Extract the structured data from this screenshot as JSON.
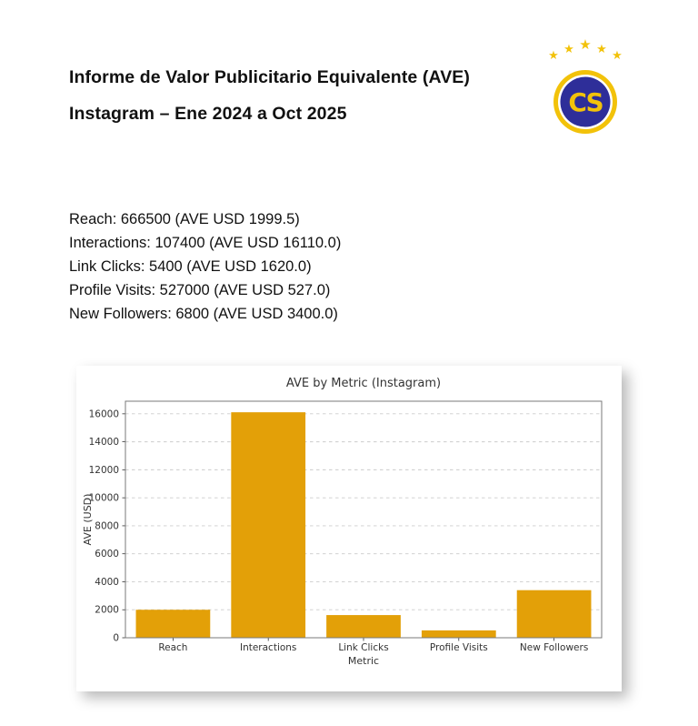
{
  "page": {
    "title_line1": "Informe de Valor Publicitario Equivalente (AVE)",
    "title_line2": "Instagram – Ene 2024 a Oct 2025"
  },
  "logo": {
    "letters": "CS",
    "star": "★",
    "colors": {
      "gold": "#F2C20A",
      "blue": "#2E2E99",
      "white": "#ffffff"
    }
  },
  "metrics": {
    "lines": [
      "Reach: 666500 (AVE USD 1999.5)",
      "Interactions: 107400 (AVE USD 16110.0)",
      "Link Clicks: 5400 (AVE USD 1620.0)",
      "Profile Visits: 527000 (AVE USD 527.0)",
      "New Followers: 6800 (AVE USD 3400.0)"
    ]
  },
  "chart_data": {
    "type": "bar",
    "title": "AVE by Metric (Instagram)",
    "categories": [
      "Reach",
      "Interactions",
      "Link Clicks",
      "Profile Visits",
      "New Followers"
    ],
    "values": [
      1999.5,
      16110.0,
      1620.0,
      527.0,
      3400.0
    ],
    "xlabel": "Metric",
    "ylabel": "AVE (USD)",
    "ylim": [
      0,
      16900
    ],
    "yticks": [
      0,
      2000,
      4000,
      6000,
      8000,
      10000,
      12000,
      14000,
      16000
    ],
    "bar_color": "#E3A008",
    "grid": true,
    "legend": "none"
  }
}
